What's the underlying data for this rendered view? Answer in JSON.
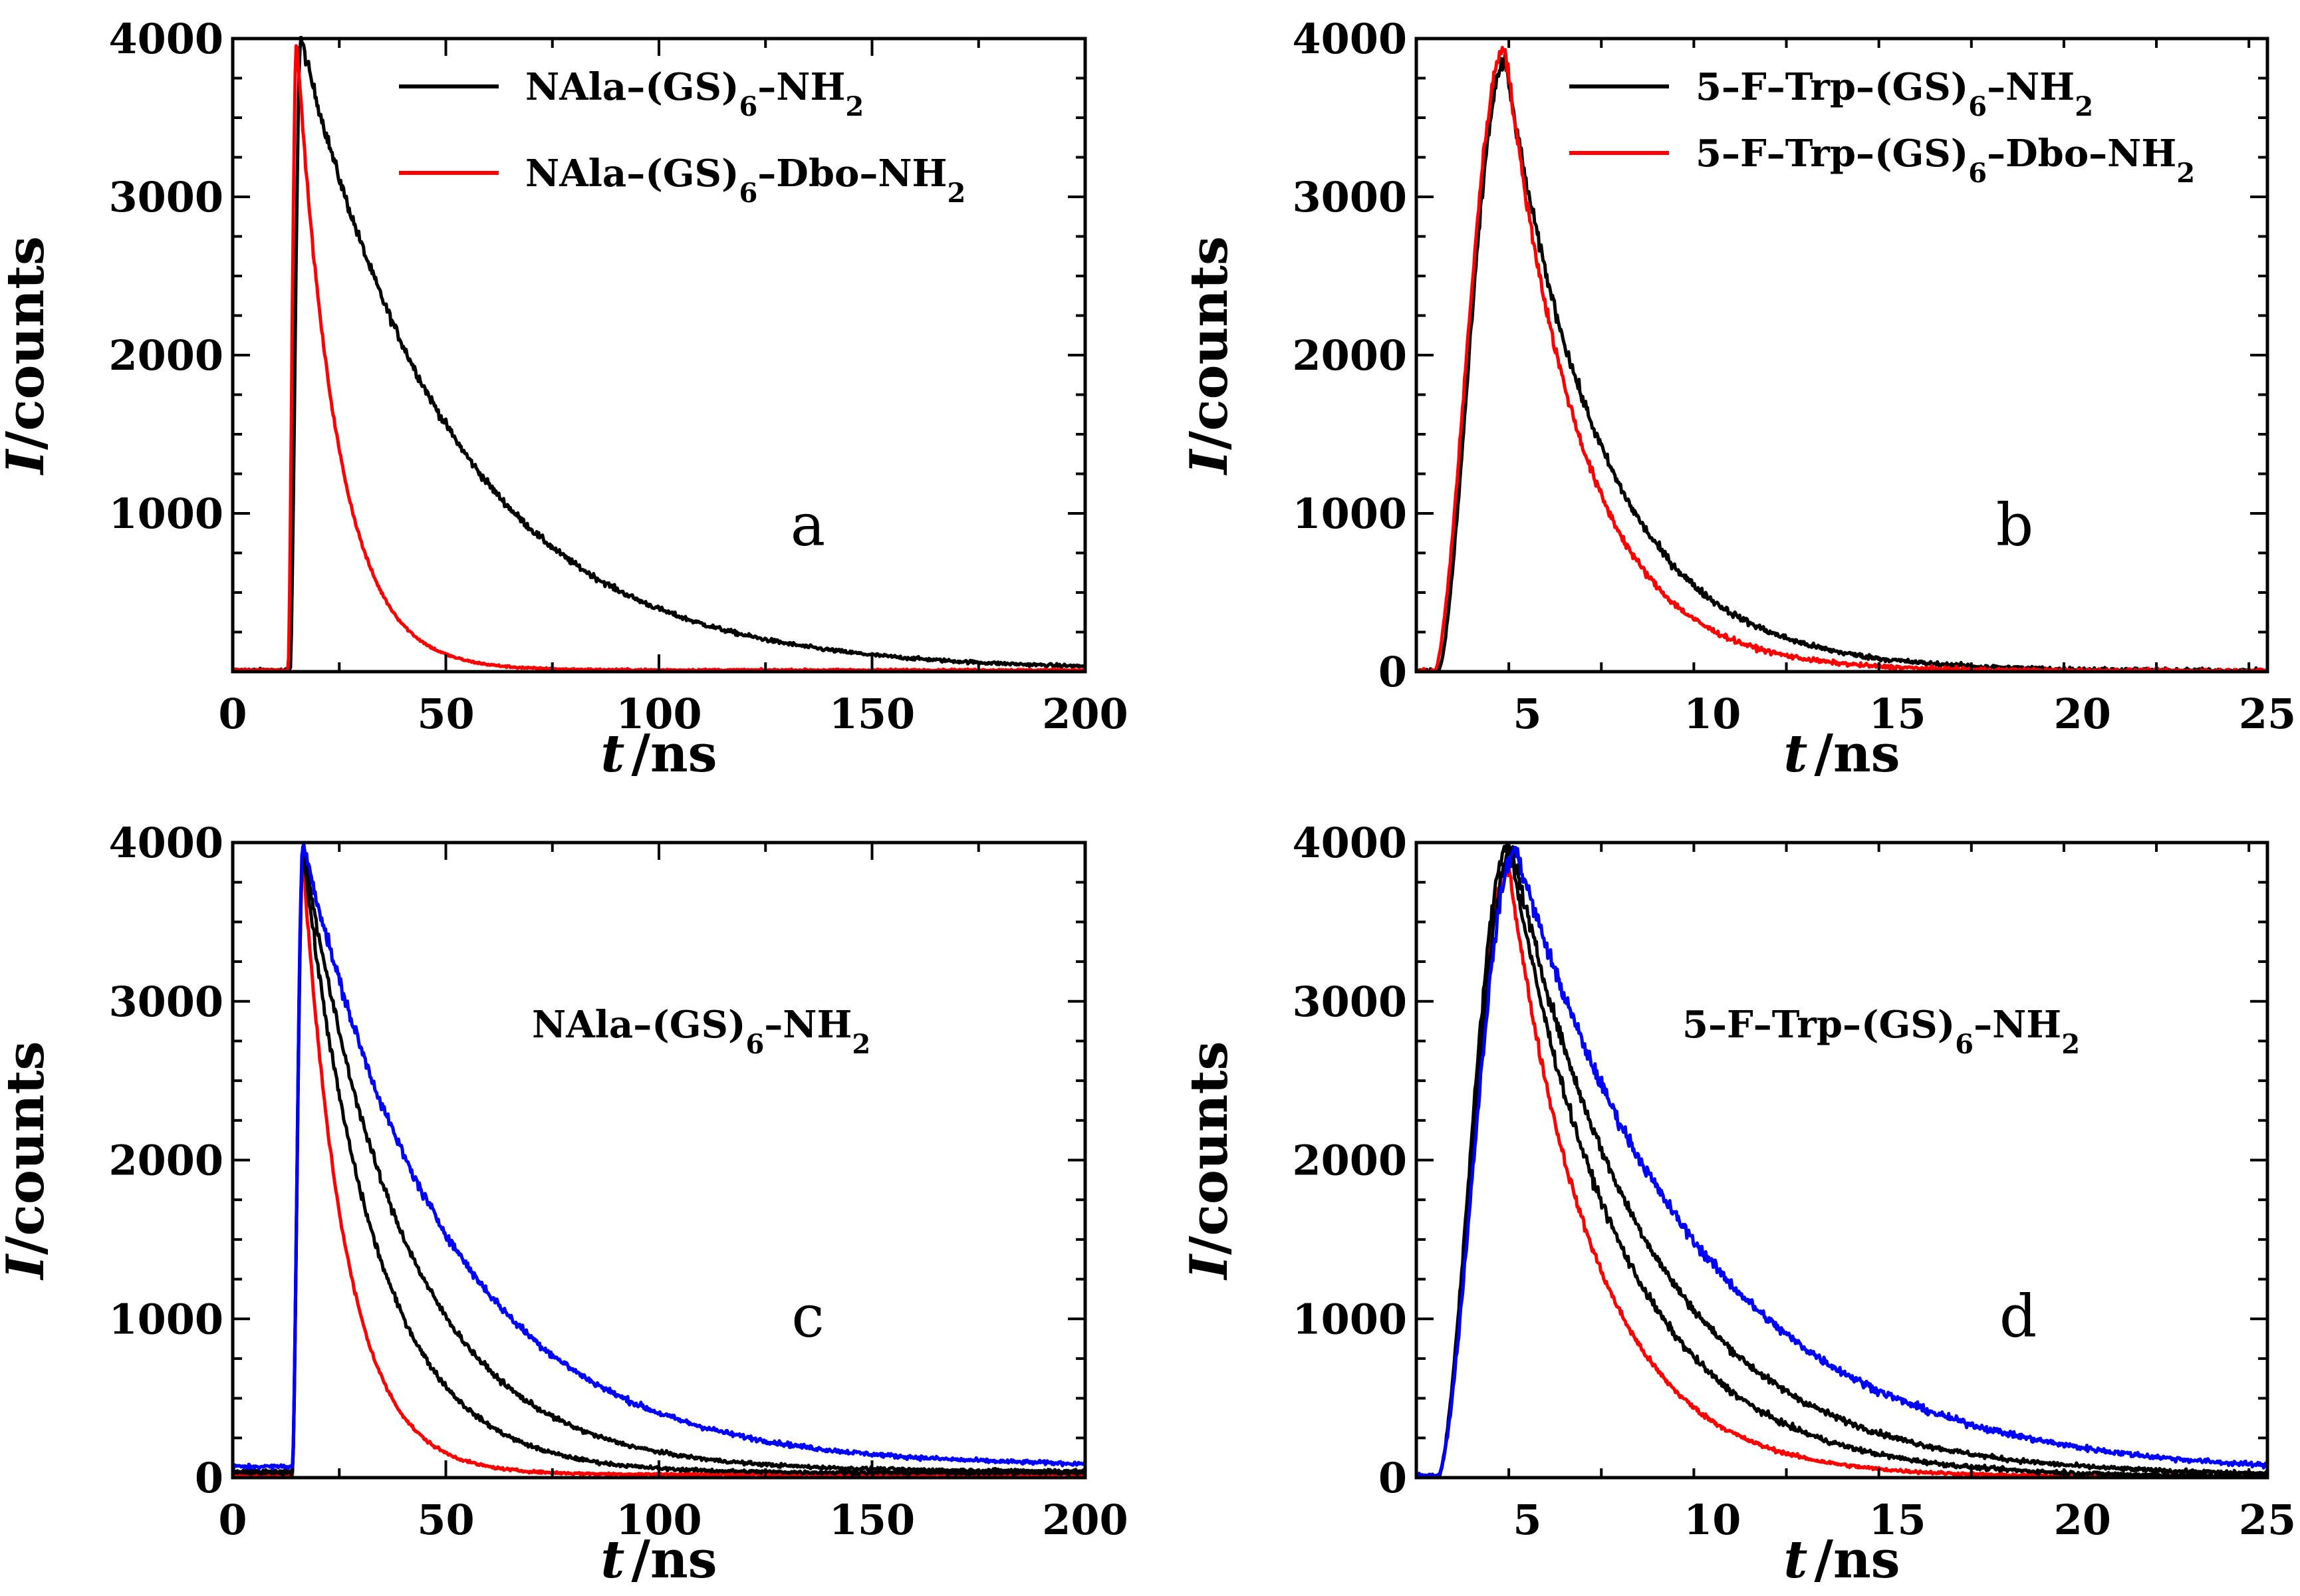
{
  "chart_data": [
    {
      "panel": "a",
      "type": "line",
      "xlabel_italic": "t",
      "xlabel_unit": "/ns",
      "ylabel_italic": "I",
      "ylabel_unit": "/counts",
      "xlim": [
        0,
        200
      ],
      "ylim": [
        0,
        4000
      ],
      "xticks": [
        0,
        50,
        100,
        150,
        200
      ],
      "xtick_labels": [
        "0",
        "50",
        "100",
        "150",
        "200"
      ],
      "yticks": [
        1000,
        2000,
        3000,
        4000
      ],
      "ytick_labels": [
        "1000",
        "2000",
        "3000",
        "4000"
      ],
      "annotation": "a",
      "legend": [
        {
          "label": "NAla–(GS)6–NH2",
          "parts": [
            [
              "NAla–(GS)",
              ""
            ],
            [
              "6",
              "sub"
            ],
            [
              "–NH",
              ""
            ],
            [
              "2",
              "sub"
            ]
          ],
          "color": "#000000"
        },
        {
          "label": "NAla–(GS)6–Dbo–NH2",
          "parts": [
            [
              "NAla–(GS)",
              ""
            ],
            [
              "6",
              "sub"
            ],
            [
              "–Dbo–NH",
              ""
            ],
            [
              "2",
              "sub"
            ]
          ],
          "color": "#ff0000"
        }
      ],
      "series": [
        {
          "name": "NAla–(GS)6–NH2",
          "color": "#000000",
          "t0": 13.5,
          "tpeak": 16,
          "peak": 4000,
          "tau": 36,
          "baseline": 10,
          "noise": 40
        },
        {
          "name": "NAla–(GS)6–Dbo–NH2",
          "color": "#ff0000",
          "t0": 13.0,
          "tpeak": 15,
          "peak": 4000,
          "tau": 9.5,
          "baseline": 10,
          "noise": 25
        }
      ]
    },
    {
      "panel": "b",
      "type": "line",
      "xlabel_italic": "t",
      "xlabel_unit": "/ns",
      "ylabel_italic": "I",
      "ylabel_unit": "/counts",
      "xlim": [
        2,
        25
      ],
      "ylim": [
        0,
        4000
      ],
      "xticks": [
        5,
        10,
        15,
        20,
        25
      ],
      "xtick_labels": [
        "5",
        "10",
        "15",
        "20",
        "25"
      ],
      "yticks": [
        0,
        1000,
        2000,
        3000,
        4000
      ],
      "ytick_labels": [
        "0",
        "1000",
        "2000",
        "3000",
        "4000"
      ],
      "annotation": "b",
      "legend": [
        {
          "label": "5–F–Trp–(GS)6–NH2",
          "parts": [
            [
              "5–F–Trp–(GS)",
              ""
            ],
            [
              "6",
              "sub"
            ],
            [
              "–NH",
              ""
            ],
            [
              "2",
              "sub"
            ]
          ],
          "color": "#000000"
        },
        {
          "label": "5–F–Trp–(GS)6–Dbo–NH2",
          "parts": [
            [
              "5–F–Trp–(GS)",
              ""
            ],
            [
              "6",
              "sub"
            ],
            [
              "–Dbo–NH",
              ""
            ],
            [
              "2",
              "sub"
            ]
          ],
          "color": "#ff0000"
        }
      ],
      "series": [
        {
          "name": "5–F–Trp–(GS)6–NH2",
          "color": "#000000",
          "t0": 2.6,
          "tpeak": 4.4,
          "peak": 3850,
          "tau": 2.6,
          "baseline": 5,
          "noise": 55
        },
        {
          "name": "5–F–Trp–(GS)6–Dbo–NH2",
          "color": "#ff0000",
          "t0": 2.5,
          "tpeak": 4.4,
          "peak": 3950,
          "tau": 2.05,
          "baseline": 5,
          "noise": 50
        }
      ]
    },
    {
      "panel": "c",
      "type": "line",
      "xlabel_italic": "t",
      "xlabel_unit": "/ns",
      "ylabel_italic": "I",
      "ylabel_unit": "/counts",
      "xlim": [
        0,
        200
      ],
      "ylim": [
        0,
        4000
      ],
      "xticks": [
        0,
        50,
        100,
        150,
        200
      ],
      "xtick_labels": [
        "0",
        "50",
        "100",
        "150",
        "200"
      ],
      "yticks": [
        0,
        1000,
        2000,
        3000,
        4000
      ],
      "ytick_labels": [
        "0",
        "1000",
        "2000",
        "3000",
        "4000"
      ],
      "annotation": "c",
      "label_text": "NAla–(GS)6–NH2",
      "label_parts": [
        [
          "NAla–(GS)",
          ""
        ],
        [
          "6",
          "sub"
        ],
        [
          "–NH",
          ""
        ],
        [
          "2",
          "sub"
        ]
      ],
      "series": [
        {
          "name": "red",
          "color": "#ff0000",
          "t0": 14.0,
          "tpeak": 16.5,
          "peak": 3900,
          "tau": 10,
          "baseline": 20,
          "noise": 30
        },
        {
          "name": "black 1",
          "color": "#000000",
          "t0": 14.0,
          "tpeak": 16.5,
          "peak": 3950,
          "tau": 17,
          "baseline": 30,
          "noise": 40
        },
        {
          "name": "black 2",
          "color": "#000000",
          "t0": 14.0,
          "tpeak": 16.5,
          "peak": 3980,
          "tau": 24,
          "baseline": 40,
          "noise": 40
        },
        {
          "name": "blue",
          "color": "#0000ff",
          "t0": 14.0,
          "tpeak": 16.5,
          "peak": 4000,
          "tau": 34,
          "baseline": 70,
          "noise": 45
        }
      ]
    },
    {
      "panel": "d",
      "type": "line",
      "xlabel_italic": "t",
      "xlabel_unit": "/ns",
      "ylabel_italic": "I",
      "ylabel_unit": "/counts",
      "xlim": [
        2,
        25
      ],
      "ylim": [
        0,
        4000
      ],
      "xticks": [
        5,
        10,
        15,
        20,
        25
      ],
      "xtick_labels": [
        "5",
        "10",
        "15",
        "20",
        "25"
      ],
      "yticks": [
        0,
        1000,
        2000,
        3000,
        4000
      ],
      "ytick_labels": [
        "0",
        "1000",
        "2000",
        "3000",
        "4000"
      ],
      "annotation": "d",
      "label_text": "5–F–Trp–(GS)6–NH2",
      "label_parts": [
        [
          "5–F–Trp–(GS)",
          ""
        ],
        [
          "6",
          "sub"
        ],
        [
          "–NH",
          ""
        ],
        [
          "2",
          "sub"
        ]
      ],
      "series": [
        {
          "name": "red",
          "color": "#ff0000",
          "t0": 2.6,
          "tpeak": 4.5,
          "peak": 3850,
          "tau": 2.3,
          "baseline": 5,
          "noise": 40
        },
        {
          "name": "black 1",
          "color": "#000000",
          "t0": 2.6,
          "tpeak": 4.5,
          "peak": 4000,
          "tau": 3.0,
          "baseline": 5,
          "noise": 50
        },
        {
          "name": "black 2",
          "color": "#000000",
          "t0": 2.6,
          "tpeak": 4.6,
          "peak": 3950,
          "tau": 3.7,
          "baseline": 10,
          "noise": 50
        },
        {
          "name": "blue",
          "color": "#0000ff",
          "t0": 2.6,
          "tpeak": 4.7,
          "peak": 3950,
          "tau": 4.9,
          "baseline": 15,
          "noise": 55
        }
      ]
    }
  ]
}
